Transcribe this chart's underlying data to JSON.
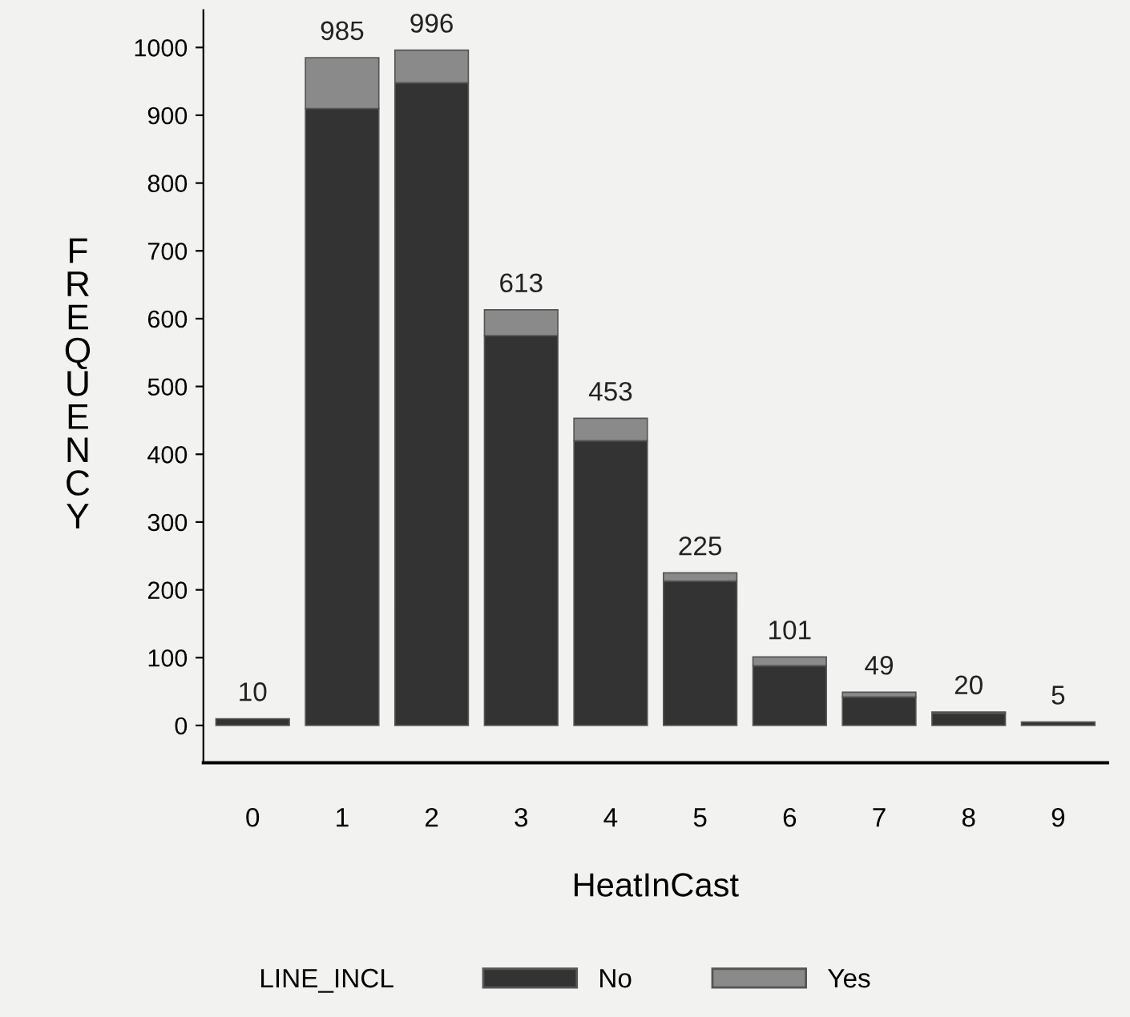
{
  "chart_data": {
    "type": "bar",
    "stacked": true,
    "xlabel": "HeatInCast",
    "ylabel": "FREQUENCY",
    "legend_title": "LINE_INCL",
    "legend": "bottom",
    "grid": false,
    "categories": [
      "0",
      "1",
      "2",
      "3",
      "4",
      "5",
      "6",
      "7",
      "8",
      "9"
    ],
    "series": [
      {
        "name": "No",
        "color": "#333333",
        "values": [
          10,
          910,
          948,
          575,
          420,
          213,
          88,
          42,
          18,
          5
        ]
      },
      {
        "name": "Yes",
        "color": "#8a8a8a",
        "values": [
          0,
          75,
          48,
          38,
          33,
          12,
          13,
          7,
          2,
          0
        ]
      }
    ],
    "totals": [
      "10",
      "985",
      "996",
      "613",
      "453",
      "225",
      "101",
      "49",
      "20",
      "5"
    ],
    "ylim": [
      -55,
      1055
    ],
    "yticks": [
      0,
      100,
      200,
      300,
      400,
      500,
      600,
      700,
      800,
      900,
      1000
    ]
  }
}
